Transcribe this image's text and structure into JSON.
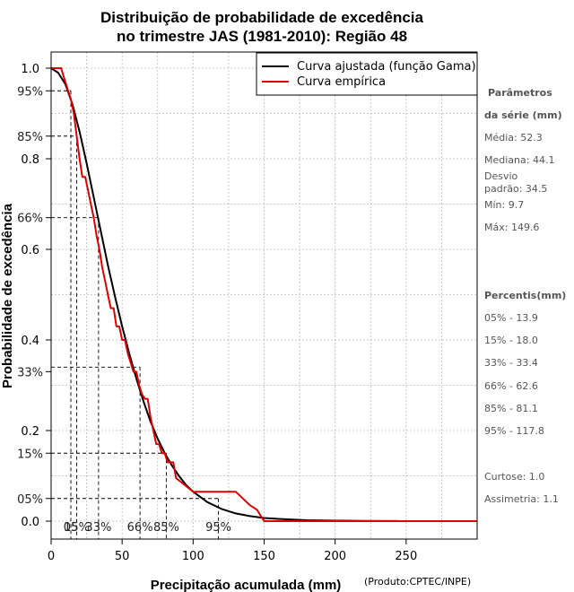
{
  "chart_data": {
    "type": "line",
    "title": "Distribuição de probabilidade de excedência",
    "subtitle": "no trimestre JAS (1981-2010): Região 48",
    "xlabel": "Precipitação acumulada (mm)",
    "ylabel": "Probabilidade de excedência",
    "credit": "(Produto:CPTEC/INPE)",
    "xlim": [
      0,
      300
    ],
    "ylim": [
      0,
      1
    ],
    "x_ticks": [
      0,
      50,
      100,
      150,
      200,
      250
    ],
    "y_ticks": [
      {
        "value": 0.0,
        "label": "0.0"
      },
      {
        "value": 0.2,
        "label": "0.2"
      },
      {
        "value": 0.4,
        "label": "0.4"
      },
      {
        "value": 0.6,
        "label": "0.6"
      },
      {
        "value": 0.8,
        "label": "0.8"
      },
      {
        "value": 1.0,
        "label": "1.0"
      }
    ],
    "grid": true,
    "legend_position": "top-right",
    "series": [
      {
        "name": "Curva ajustada (função Gama)",
        "color": "#000000",
        "x": [
          0,
          5,
          10,
          15,
          20,
          25,
          30,
          35,
          40,
          45,
          50,
          55,
          60,
          65,
          70,
          75,
          80,
          85,
          90,
          95,
          100,
          110,
          120,
          130,
          140,
          150,
          160,
          180,
          200,
          220,
          245
        ],
        "y": [
          1.0,
          0.99,
          0.965,
          0.92,
          0.86,
          0.79,
          0.715,
          0.64,
          0.565,
          0.495,
          0.43,
          0.37,
          0.315,
          0.265,
          0.22,
          0.182,
          0.15,
          0.123,
          0.1,
          0.08,
          0.065,
          0.042,
          0.027,
          0.017,
          0.011,
          0.007,
          0.005,
          0.002,
          0.001,
          0.0005,
          0.0002
        ]
      },
      {
        "name": "Curva empírica",
        "color": "#e00000",
        "x": [
          0,
          7,
          10,
          14,
          16,
          18,
          20,
          22,
          24,
          26,
          28,
          30,
          32,
          34,
          36,
          38,
          40,
          42,
          44,
          46,
          48,
          50,
          52,
          54,
          56,
          58,
          60,
          62,
          64,
          66,
          68,
          70,
          72,
          74,
          76,
          78,
          80,
          82,
          86,
          88,
          100,
          130,
          140,
          145,
          148,
          150,
          300
        ],
        "y": [
          1.0,
          1.0,
          0.97,
          0.93,
          0.9,
          0.85,
          0.8,
          0.76,
          0.76,
          0.73,
          0.7,
          0.67,
          0.63,
          0.6,
          0.56,
          0.53,
          0.5,
          0.47,
          0.47,
          0.43,
          0.43,
          0.4,
          0.4,
          0.37,
          0.35,
          0.33,
          0.33,
          0.3,
          0.28,
          0.27,
          0.27,
          0.23,
          0.2,
          0.17,
          0.17,
          0.15,
          0.15,
          0.13,
          0.13,
          0.095,
          0.065,
          0.065,
          0.035,
          0.025,
          0.01,
          0.0,
          0.0
        ]
      }
    ],
    "percentile_lines": [
      {
        "label": "05%",
        "x_label": "05",
        "value": 13.9,
        "prob": 0.95
      },
      {
        "label": "15%",
        "x_label": "15%",
        "value": 18.0,
        "prob": 0.85
      },
      {
        "label": "33%",
        "x_label": "33%",
        "value": 33.4,
        "prob": 0.67
      },
      {
        "label": "66%",
        "x_label": "66%",
        "value": 62.6,
        "prob": 0.34
      },
      {
        "label": "85%",
        "x_label": "85%",
        "value": 81.1,
        "prob": 0.15
      },
      {
        "label": "95%",
        "x_label": "95%",
        "value": 117.8,
        "prob": 0.05
      }
    ],
    "y_percent_ticks": [
      {
        "prob": 0.95,
        "label": "95%"
      },
      {
        "prob": 0.85,
        "label": "85%"
      },
      {
        "prob": 0.67,
        "label": "66%"
      },
      {
        "prob": 0.33,
        "label": "33%"
      },
      {
        "prob": 0.15,
        "label": "15%"
      },
      {
        "prob": 0.05,
        "label": "05%"
      }
    ]
  },
  "side_panel": {
    "params_heading_1": "Parâmetros",
    "params_heading_2": "da série (mm)",
    "mean": "Média: 52.3",
    "median": "Mediana: 44.1",
    "sd_1": "Desvio",
    "sd_2": "padrão: 34.5",
    "min": "Mín: 9.7",
    "max": "Máx: 149.6",
    "percentiles_heading": "Percentis(mm)",
    "p05": "05% - 13.9",
    "p15": "15% - 18.0",
    "p33": "33% - 33.4",
    "p66": "66% - 62.6",
    "p85": "85% - 81.1",
    "p95": "95% - 117.8",
    "kurtosis": "Curtose: 1.0",
    "skewness": "Assimetria: 1.1"
  }
}
